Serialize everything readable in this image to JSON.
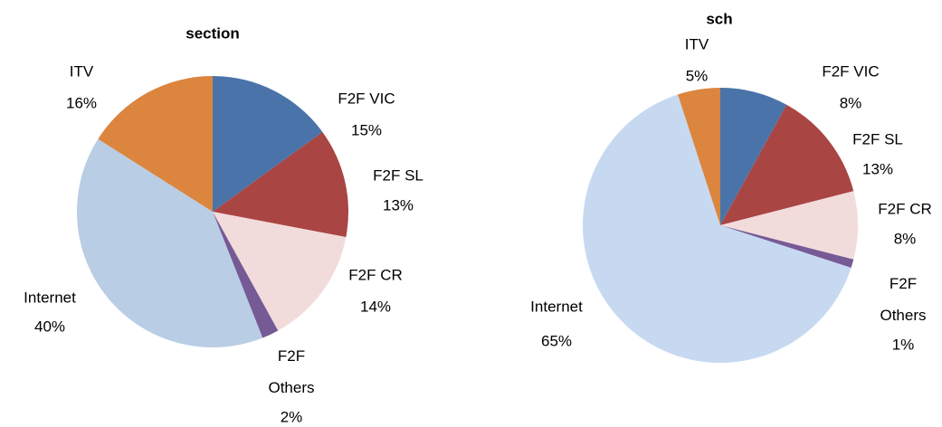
{
  "chart_data": [
    {
      "type": "pie",
      "title": "section",
      "categories": [
        "F2F VIC",
        "F2F SL",
        "F2F CR",
        "F2F Others",
        "Internet",
        "ITV"
      ],
      "values": [
        15,
        13,
        14,
        2,
        40,
        16
      ],
      "value_labels": [
        "15%",
        "13%",
        "14%",
        "2%",
        "40%",
        "16%"
      ],
      "colors": [
        "#4a74a9",
        "#a94543",
        "#f2dcdb",
        "#765a96",
        "#b9cde5",
        "#db853f"
      ]
    },
    {
      "type": "pie",
      "title": "sch",
      "categories": [
        "F2F  VIC",
        "F2F SL",
        "F2F CR",
        "F2F Others",
        "Internet",
        "ITV"
      ],
      "values": [
        8,
        13,
        8,
        1,
        65,
        5
      ],
      "value_labels": [
        "8%",
        "13%",
        "8%",
        "1%",
        "65%",
        "5%"
      ],
      "colors": [
        "#4a74a9",
        "#a94543",
        "#f2dcdb",
        "#765a96",
        "#c6d9f1",
        "#db853f"
      ]
    }
  ]
}
